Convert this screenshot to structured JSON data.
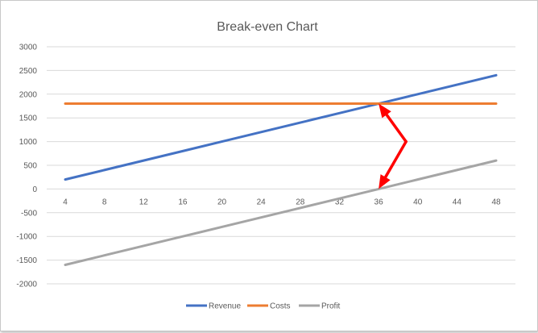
{
  "chart_data": {
    "type": "line",
    "title": "Break-even Chart",
    "xlabel": "",
    "ylabel": "",
    "x": [
      4,
      8,
      12,
      16,
      20,
      24,
      28,
      32,
      36,
      40,
      44,
      48
    ],
    "ylim": [
      -2000,
      3000
    ],
    "yticks": [
      3000,
      2500,
      2000,
      1500,
      1000,
      500,
      0,
      -500,
      -1000,
      -1500,
      -2000
    ],
    "grid": true,
    "legend_position": "bottom",
    "series": [
      {
        "name": "Revenue",
        "color": "#4472C4",
        "values": [
          200,
          400,
          600,
          800,
          1000,
          1200,
          1400,
          1600,
          1800,
          2000,
          2200,
          2400
        ]
      },
      {
        "name": "Costs",
        "color": "#ED7D31",
        "values": [
          1800,
          1800,
          1800,
          1800,
          1800,
          1800,
          1800,
          1800,
          1800,
          1800,
          1800,
          1800
        ]
      },
      {
        "name": "Profit",
        "color": "#A5A5A5",
        "values": [
          -1600,
          -1400,
          -1200,
          -1000,
          -800,
          -600,
          -400,
          -200,
          0,
          200,
          400,
          600
        ]
      }
    ],
    "annotations": [
      {
        "type": "arrow",
        "color": "#FF0000",
        "from": [
          38.8,
          1000
        ],
        "to": [
          36,
          1800
        ]
      },
      {
        "type": "arrow",
        "color": "#FF0000",
        "from": [
          38.8,
          1000
        ],
        "to": [
          36,
          0
        ]
      }
    ]
  }
}
